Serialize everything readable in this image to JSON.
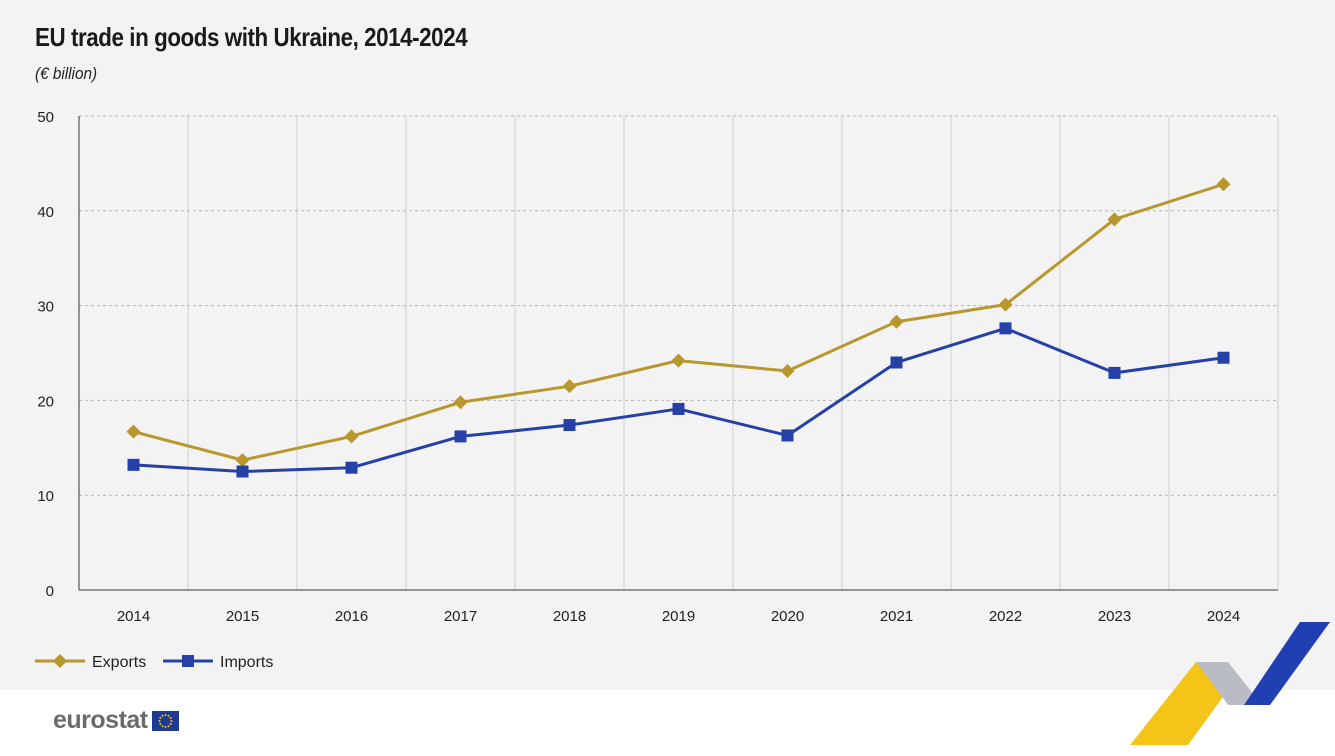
{
  "header": {
    "title": "EU trade in goods with Ukraine, 2014-2024",
    "subtitle": "(€ billion)"
  },
  "footer": {
    "logo_text": "eurostat"
  },
  "colors": {
    "exports": "#b8972c",
    "imports": "#2541a8",
    "grid": "#b5b5b5",
    "axis": "#3a3a3a"
  },
  "chart_data": {
    "type": "line",
    "title": "EU trade in goods with Ukraine, 2014-2024",
    "subtitle": "(€ billion)",
    "categories": [
      "2014",
      "2015",
      "2016",
      "2017",
      "2018",
      "2019",
      "2020",
      "2021",
      "2022",
      "2023",
      "2024"
    ],
    "series": [
      {
        "name": "Exports",
        "marker": "diamond",
        "values": [
          16.7,
          13.7,
          16.2,
          19.8,
          21.5,
          24.2,
          23.1,
          28.3,
          30.1,
          39.1,
          42.8
        ]
      },
      {
        "name": "Imports",
        "marker": "square",
        "values": [
          13.2,
          12.5,
          12.9,
          16.2,
          17.4,
          19.1,
          16.3,
          24.0,
          27.6,
          22.9,
          24.5
        ]
      }
    ],
    "ylim": [
      0,
      50
    ],
    "yticks": [
      "0",
      "10",
      "20",
      "30",
      "40",
      "50"
    ],
    "grid": true,
    "legend": "bottom-left"
  }
}
